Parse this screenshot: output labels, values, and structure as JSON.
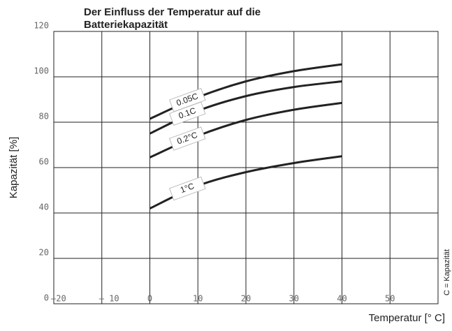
{
  "chart_data": {
    "type": "line",
    "title": "Der Einfluss der Temperatur auf die Batteriekapazität",
    "x_label": "Temperatur [° C]",
    "y_label": "Kapazität [%]",
    "note": "C = Kapazität",
    "x": [
      0,
      10,
      20,
      30,
      40
    ],
    "series": [
      {
        "name": "0.05C",
        "color": "#222222",
        "values": [
          81.5,
          91,
          98,
          102.5,
          105.5
        ]
      },
      {
        "name": "0.1C",
        "color": "#222222",
        "values": [
          75,
          85,
          91.5,
          95.5,
          98
        ]
      },
      {
        "name": "0.2°C",
        "color": "#222222",
        "values": [
          64.5,
          74,
          81,
          85.5,
          88.5
        ]
      },
      {
        "name": "1°C",
        "color": "#222222",
        "values": [
          42,
          52,
          58,
          62,
          65
        ]
      }
    ],
    "xlim": [
      -20,
      60
    ],
    "xticks": [
      {
        "value": -20,
        "label": "–20"
      },
      {
        "value": -10,
        "label": "– 10"
      },
      0,
      10,
      20,
      30,
      40,
      50
    ],
    "ylim": [
      0,
      120
    ],
    "yticks": [
      0,
      20,
      40,
      60,
      80,
      100,
      120
    ],
    "grid": true
  }
}
